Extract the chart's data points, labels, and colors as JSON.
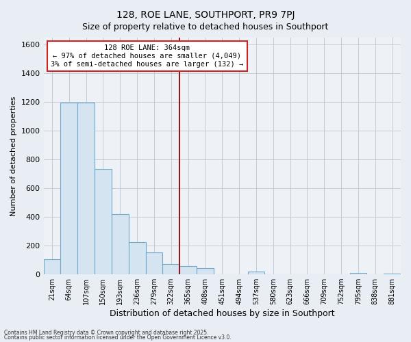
{
  "title": "128, ROE LANE, SOUTHPORT, PR9 7PJ",
  "subtitle": "Size of property relative to detached houses in Southport",
  "xlabel": "Distribution of detached houses by size in Southport",
  "ylabel": "Number of detached properties",
  "categories": [
    "21sqm",
    "64sqm",
    "107sqm",
    "150sqm",
    "193sqm",
    "236sqm",
    "279sqm",
    "322sqm",
    "365sqm",
    "408sqm",
    "451sqm",
    "494sqm",
    "537sqm",
    "580sqm",
    "623sqm",
    "666sqm",
    "709sqm",
    "752sqm",
    "795sqm",
    "838sqm",
    "881sqm"
  ],
  "values": [
    105,
    1195,
    1195,
    735,
    420,
    225,
    150,
    70,
    55,
    40,
    0,
    0,
    20,
    0,
    0,
    0,
    0,
    0,
    10,
    0,
    5
  ],
  "bar_color": "#d4e4f0",
  "bar_edge_color": "#6fa8c8",
  "vline_index": 8,
  "vline_color": "#8b1a1a",
  "annotation_text": "128 ROE LANE: 364sqm\n← 97% of detached houses are smaller (4,049)\n3% of semi-detached houses are larger (132) →",
  "annotation_box_color": "#ffffff",
  "annotation_box_edge": "#cc2222",
  "footnote1": "Contains HM Land Registry data © Crown copyright and database right 2025.",
  "footnote2": "Contains public sector information licensed under the Open Government Licence v3.0.",
  "ylim": [
    0,
    1650
  ],
  "yticks": [
    0,
    200,
    400,
    600,
    800,
    1000,
    1200,
    1400,
    1600
  ],
  "background_color": "#e8eef4",
  "plot_bg_color": "#eef2f7",
  "grid_color": "#c0ccd8",
  "title_fontsize": 10,
  "subtitle_fontsize": 9
}
